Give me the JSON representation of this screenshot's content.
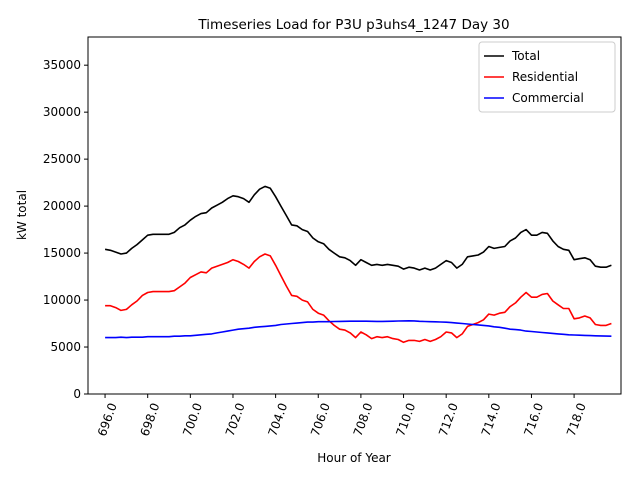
{
  "chart_data": {
    "type": "line",
    "title": "Timeseries Load for P3U p3uhs4_1247  Day 30",
    "xlabel": "Hour of Year",
    "ylabel": "kW total",
    "xlim": [
      695.2,
      720.2
    ],
    "ylim": [
      0,
      38000
    ],
    "xticks": [
      696.0,
      698.0,
      700.0,
      702.0,
      704.0,
      706.0,
      708.0,
      710.0,
      712.0,
      714.0,
      716.0,
      718.0
    ],
    "xtick_labels": [
      "696.0",
      "698.0",
      "700.0",
      "702.0",
      "704.0",
      "706.0",
      "708.0",
      "710.0",
      "712.0",
      "714.0",
      "716.0",
      "718.0"
    ],
    "yticks": [
      0,
      5000,
      10000,
      15000,
      20000,
      25000,
      30000,
      35000
    ],
    "ytick_labels": [
      "0",
      "5000",
      "10000",
      "15000",
      "20000",
      "25000",
      "30000",
      "35000"
    ],
    "legend_position": "top-right",
    "x": [
      696.0,
      696.25,
      696.5,
      696.75,
      697.0,
      697.25,
      697.5,
      697.75,
      698.0,
      698.25,
      698.5,
      698.75,
      699.0,
      699.25,
      699.5,
      699.75,
      700.0,
      700.25,
      700.5,
      700.75,
      701.0,
      701.25,
      701.5,
      701.75,
      702.0,
      702.25,
      702.5,
      702.75,
      703.0,
      703.25,
      703.5,
      703.75,
      704.0,
      704.25,
      704.5,
      704.75,
      705.0,
      705.25,
      705.5,
      705.75,
      706.0,
      706.25,
      706.5,
      706.75,
      707.0,
      707.25,
      707.5,
      707.75,
      708.0,
      708.25,
      708.5,
      708.75,
      709.0,
      709.25,
      709.5,
      709.75,
      710.0,
      710.25,
      710.5,
      710.75,
      711.0,
      711.25,
      711.5,
      711.75,
      712.0,
      712.25,
      712.5,
      712.75,
      713.0,
      713.25,
      713.5,
      713.75,
      714.0,
      714.25,
      714.5,
      714.75,
      715.0,
      715.25,
      715.5,
      715.75,
      716.0,
      716.25,
      716.5,
      716.75,
      717.0,
      717.25,
      717.5,
      717.75,
      718.0,
      718.25,
      718.5,
      718.75,
      719.0,
      719.25,
      719.5,
      719.75
    ],
    "series": [
      {
        "name": "Total",
        "color": "#000000",
        "values": [
          15400,
          15300,
          15100,
          14900,
          15000,
          15500,
          15900,
          16400,
          16900,
          17000,
          17000,
          17000,
          17000,
          17200,
          17700,
          18000,
          18500,
          18900,
          19200,
          19300,
          19800,
          20100,
          20400,
          20800,
          21100,
          21000,
          20800,
          20400,
          21200,
          21800,
          22100,
          21900,
          21000,
          20000,
          19000,
          18000,
          17900,
          17500,
          17300,
          16600,
          16200,
          16000,
          15400,
          15000,
          14600,
          14500,
          14200,
          13700,
          14300,
          14000,
          13700,
          13800,
          13700,
          13800,
          13700,
          13600,
          13300,
          13500,
          13400,
          13200,
          13400,
          13200,
          13400,
          13800,
          14200,
          14000,
          13400,
          13800,
          14600,
          14700,
          14800,
          15100,
          15700,
          15500,
          15600,
          15700,
          16300,
          16600,
          17200,
          17500,
          16900,
          16900,
          17200,
          17100,
          16300,
          15700,
          15400,
          15300,
          14300,
          14400,
          14500,
          14300,
          13600,
          13500,
          13500,
          13700
        ]
      },
      {
        "name": "Residential",
        "color": "#ff0000",
        "values": [
          9400,
          9400,
          9200,
          8900,
          9000,
          9500,
          9900,
          10500,
          10800,
          10900,
          10900,
          10900,
          10900,
          11000,
          11400,
          11800,
          12400,
          12700,
          13000,
          12900,
          13400,
          13600,
          13800,
          14000,
          14300,
          14100,
          13800,
          13400,
          14100,
          14600,
          14900,
          14700,
          13700,
          12600,
          11500,
          10500,
          10400,
          10000,
          9800,
          9000,
          8600,
          8400,
          7800,
          7300,
          6900,
          6800,
          6500,
          6000,
          6600,
          6300,
          5900,
          6100,
          6000,
          6100,
          5900,
          5800,
          5500,
          5700,
          5700,
          5600,
          5800,
          5600,
          5800,
          6100,
          6600,
          6500,
          6000,
          6400,
          7200,
          7400,
          7600,
          7900,
          8500,
          8400,
          8600,
          8700,
          9300,
          9700,
          10300,
          10800,
          10300,
          10300,
          10600,
          10700,
          9900,
          9500,
          9100,
          9100,
          8000,
          8100,
          8300,
          8100,
          7400,
          7300,
          7300,
          7500
        ]
      },
      {
        "name": "Commercial",
        "color": "#0000ff",
        "values": [
          6000,
          6000,
          6000,
          6050,
          6000,
          6050,
          6050,
          6050,
          6100,
          6100,
          6100,
          6100,
          6100,
          6150,
          6150,
          6200,
          6200,
          6250,
          6300,
          6350,
          6400,
          6500,
          6600,
          6700,
          6800,
          6900,
          6950,
          7000,
          7100,
          7150,
          7200,
          7250,
          7300,
          7400,
          7450,
          7500,
          7550,
          7600,
          7650,
          7650,
          7700,
          7700,
          7700,
          7720,
          7730,
          7740,
          7750,
          7750,
          7750,
          7750,
          7740,
          7730,
          7730,
          7740,
          7750,
          7770,
          7780,
          7790,
          7780,
          7740,
          7720,
          7700,
          7680,
          7660,
          7640,
          7600,
          7550,
          7500,
          7450,
          7400,
          7350,
          7300,
          7250,
          7150,
          7100,
          7000,
          6900,
          6850,
          6800,
          6700,
          6650,
          6600,
          6550,
          6500,
          6450,
          6400,
          6350,
          6300,
          6280,
          6260,
          6240,
          6220,
          6200,
          6180,
          6160,
          6150
        ]
      }
    ]
  }
}
